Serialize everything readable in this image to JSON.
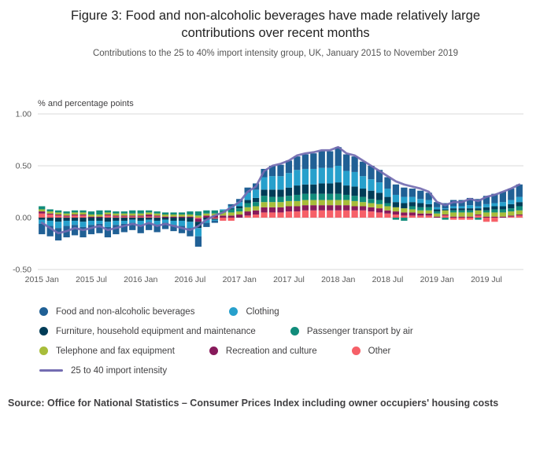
{
  "title": "Figure 3: Food and non-alcoholic beverages have made relatively large contributions over recent months",
  "subtitle": "Contributions to the 25 to 40% import intensity group, UK, January 2015 to November 2019",
  "source": "Source: Office for National Statistics – Consumer Prices Index including owner occupiers' housing costs",
  "chart_data": {
    "type": "bar",
    "stacked": true,
    "ylabel": "% and percentage points",
    "ylim": [
      -0.5,
      1.0
    ],
    "yticks": [
      1.0,
      0.5,
      0.0,
      -0.5
    ],
    "ytick_labels": [
      "1.00",
      "0.50",
      "0.00",
      "-0.50"
    ],
    "tick_indices": [
      0,
      6,
      12,
      18,
      24,
      30,
      36,
      42,
      48,
      54
    ],
    "tick_labels": [
      "2015 Jan",
      "2015 Jul",
      "2016 Jan",
      "2016 Jul",
      "2017 Jan",
      "2017 Jul",
      "2018 Jan",
      "2018 Jul",
      "2019 Jan",
      "2019 Jul"
    ],
    "x": [
      "2015 Jan",
      "2015 Feb",
      "2015 Mar",
      "2015 Apr",
      "2015 May",
      "2015 Jun",
      "2015 Jul",
      "2015 Aug",
      "2015 Sep",
      "2015 Oct",
      "2015 Nov",
      "2015 Dec",
      "2016 Jan",
      "2016 Feb",
      "2016 Mar",
      "2016 Apr",
      "2016 May",
      "2016 Jun",
      "2016 Jul",
      "2016 Aug",
      "2016 Sep",
      "2016 Oct",
      "2016 Nov",
      "2016 Dec",
      "2017 Jan",
      "2017 Feb",
      "2017 Mar",
      "2017 Apr",
      "2017 May",
      "2017 Jun",
      "2017 Jul",
      "2017 Aug",
      "2017 Sep",
      "2017 Oct",
      "2017 Nov",
      "2017 Dec",
      "2018 Jan",
      "2018 Feb",
      "2018 Mar",
      "2018 Apr",
      "2018 May",
      "2018 Jun",
      "2018 Jul",
      "2018 Aug",
      "2018 Sep",
      "2018 Oct",
      "2018 Nov",
      "2018 Dec",
      "2019 Jan",
      "2019 Feb",
      "2019 Mar",
      "2019 Apr",
      "2019 May",
      "2019 Jun",
      "2019 Jul",
      "2019 Aug",
      "2019 Sep",
      "2019 Oct",
      "2019 Nov"
    ],
    "series": [
      {
        "name": "Food and non-alcoholic beverages",
        "color": "#206095",
        "values": [
          -0.1,
          -0.1,
          -0.12,
          -0.11,
          -0.1,
          -0.1,
          -0.09,
          -0.09,
          -0.1,
          -0.09,
          -0.08,
          -0.07,
          -0.08,
          -0.07,
          -0.07,
          -0.06,
          -0.06,
          -0.07,
          -0.08,
          -0.1,
          -0.04,
          -0.02,
          0.0,
          0.02,
          0.03,
          0.05,
          0.06,
          0.08,
          0.1,
          0.11,
          0.12,
          0.13,
          0.14,
          0.15,
          0.16,
          0.16,
          0.18,
          0.16,
          0.15,
          0.14,
          0.13,
          0.12,
          0.11,
          0.1,
          0.09,
          0.08,
          0.08,
          0.07,
          0.05,
          0.05,
          0.06,
          0.06,
          0.07,
          0.07,
          0.08,
          0.09,
          0.1,
          0.11,
          0.12
        ]
      },
      {
        "name": "Clothing",
        "color": "#27a0cc",
        "values": [
          -0.04,
          -0.05,
          -0.06,
          -0.05,
          -0.04,
          -0.05,
          -0.04,
          -0.03,
          -0.05,
          -0.04,
          -0.03,
          -0.03,
          -0.04,
          -0.03,
          -0.04,
          -0.03,
          -0.04,
          -0.05,
          -0.06,
          -0.08,
          -0.03,
          -0.01,
          0.01,
          0.02,
          0.04,
          0.07,
          0.08,
          0.12,
          0.13,
          0.13,
          0.14,
          0.15,
          0.15,
          0.15,
          0.15,
          0.15,
          0.16,
          0.14,
          0.14,
          0.12,
          0.11,
          0.1,
          0.08,
          0.07,
          0.06,
          0.05,
          0.04,
          0.04,
          0.02,
          0.01,
          0.02,
          0.02,
          0.03,
          0.02,
          0.03,
          0.03,
          0.04,
          0.04,
          0.05
        ]
      },
      {
        "name": "Furniture, household equipment and maintenance",
        "color": "#003c57",
        "values": [
          -0.02,
          -0.03,
          -0.04,
          -0.03,
          -0.03,
          -0.04,
          -0.03,
          -0.03,
          -0.04,
          -0.03,
          -0.03,
          -0.02,
          -0.03,
          -0.02,
          -0.03,
          -0.02,
          -0.03,
          -0.03,
          -0.04,
          -0.06,
          -0.02,
          -0.01,
          0.0,
          0.01,
          0.02,
          0.03,
          0.04,
          0.06,
          0.07,
          0.07,
          0.08,
          0.09,
          0.09,
          0.09,
          0.1,
          0.1,
          0.11,
          0.09,
          0.09,
          0.08,
          0.08,
          0.07,
          0.06,
          0.05,
          0.05,
          0.04,
          0.04,
          0.03,
          0.02,
          0.01,
          0.02,
          0.02,
          0.02,
          0.02,
          0.03,
          0.03,
          0.03,
          0.04,
          0.04
        ]
      },
      {
        "name": "Passenger transport by air",
        "color": "#118c7b",
        "values": [
          0.03,
          0.02,
          0.02,
          0.02,
          0.02,
          0.02,
          0.03,
          0.04,
          0.02,
          0.02,
          0.02,
          0.03,
          0.03,
          0.02,
          0.02,
          0.02,
          0.02,
          0.02,
          0.03,
          0.04,
          0.03,
          0.03,
          0.02,
          0.03,
          0.03,
          0.04,
          0.04,
          0.06,
          0.05,
          0.05,
          0.05,
          0.06,
          0.06,
          0.06,
          0.06,
          0.06,
          0.06,
          0.05,
          0.05,
          0.05,
          0.04,
          0.04,
          0.03,
          -0.02,
          -0.03,
          0.03,
          0.03,
          0.03,
          0.02,
          -0.02,
          0.02,
          0.02,
          0.02,
          -0.02,
          0.02,
          0.03,
          0.03,
          0.03,
          0.04
        ]
      },
      {
        "name": "Telephone and fax equipment",
        "color": "#a8bd3a",
        "values": [
          0.02,
          0.02,
          0.02,
          0.02,
          0.02,
          0.02,
          0.02,
          0.02,
          0.02,
          0.02,
          0.02,
          0.02,
          0.02,
          0.02,
          0.02,
          0.02,
          0.02,
          0.02,
          0.02,
          0.02,
          0.02,
          0.02,
          0.03,
          0.03,
          0.03,
          0.04,
          0.04,
          0.05,
          0.05,
          0.05,
          0.05,
          0.05,
          0.05,
          0.05,
          0.05,
          0.05,
          0.05,
          0.05,
          0.05,
          0.04,
          0.04,
          0.04,
          0.04,
          0.04,
          0.04,
          0.03,
          0.03,
          0.03,
          0.03,
          0.04,
          0.04,
          0.04,
          0.04,
          0.04,
          0.04,
          0.04,
          0.04,
          0.04,
          0.04
        ]
      },
      {
        "name": "Recreation and culture",
        "color": "#871a5b",
        "values": [
          0.02,
          0.01,
          0.01,
          0.01,
          0.01,
          0.01,
          0.01,
          0.01,
          0.01,
          0.01,
          0.01,
          0.01,
          0.01,
          0.02,
          0.01,
          0.01,
          0.01,
          0.01,
          0.01,
          -0.03,
          0.02,
          0.02,
          0.02,
          0.02,
          0.03,
          0.04,
          0.04,
          0.05,
          0.05,
          0.05,
          0.05,
          0.05,
          0.05,
          0.05,
          0.05,
          0.05,
          0.05,
          0.05,
          0.04,
          0.04,
          0.04,
          0.04,
          0.03,
          0.03,
          0.03,
          0.03,
          0.02,
          0.02,
          0.01,
          0.01,
          0.01,
          0.01,
          0.01,
          0.01,
          0.01,
          0.01,
          0.01,
          0.01,
          0.01
        ]
      },
      {
        "name": "Other",
        "color": "#f66068",
        "values": [
          0.04,
          0.03,
          0.02,
          0.01,
          0.02,
          0.02,
          0.0,
          0.0,
          0.02,
          0.01,
          0.01,
          0.01,
          0.01,
          0.01,
          0.01,
          0.0,
          0.0,
          0.0,
          0.0,
          -0.01,
          0.0,
          -0.01,
          -0.03,
          -0.03,
          0.0,
          0.02,
          0.03,
          0.05,
          0.05,
          0.05,
          0.06,
          0.06,
          0.07,
          0.07,
          0.07,
          0.07,
          0.07,
          0.07,
          0.07,
          0.07,
          0.06,
          0.05,
          0.04,
          0.03,
          0.02,
          0.02,
          0.02,
          0.02,
          0.0,
          0.02,
          -0.02,
          -0.02,
          -0.02,
          0.02,
          -0.04,
          -0.04,
          0.0,
          0.01,
          0.02
        ]
      }
    ],
    "line_series": {
      "name": "25 to 40 import intensity",
      "color": "#746cb1",
      "values": [
        -0.05,
        -0.1,
        -0.15,
        -0.13,
        -0.1,
        -0.12,
        -0.1,
        -0.08,
        -0.12,
        -0.1,
        -0.08,
        -0.06,
        -0.08,
        -0.05,
        -0.08,
        -0.06,
        -0.08,
        -0.1,
        -0.12,
        -0.08,
        -0.02,
        0.02,
        0.05,
        0.1,
        0.15,
        0.25,
        0.3,
        0.45,
        0.5,
        0.52,
        0.55,
        0.6,
        0.62,
        0.63,
        0.65,
        0.65,
        0.68,
        0.62,
        0.6,
        0.55,
        0.5,
        0.45,
        0.4,
        0.35,
        0.32,
        0.3,
        0.28,
        0.25,
        0.15,
        0.12,
        0.15,
        0.15,
        0.18,
        0.16,
        0.2,
        0.22,
        0.25,
        0.28,
        0.32
      ]
    }
  }
}
